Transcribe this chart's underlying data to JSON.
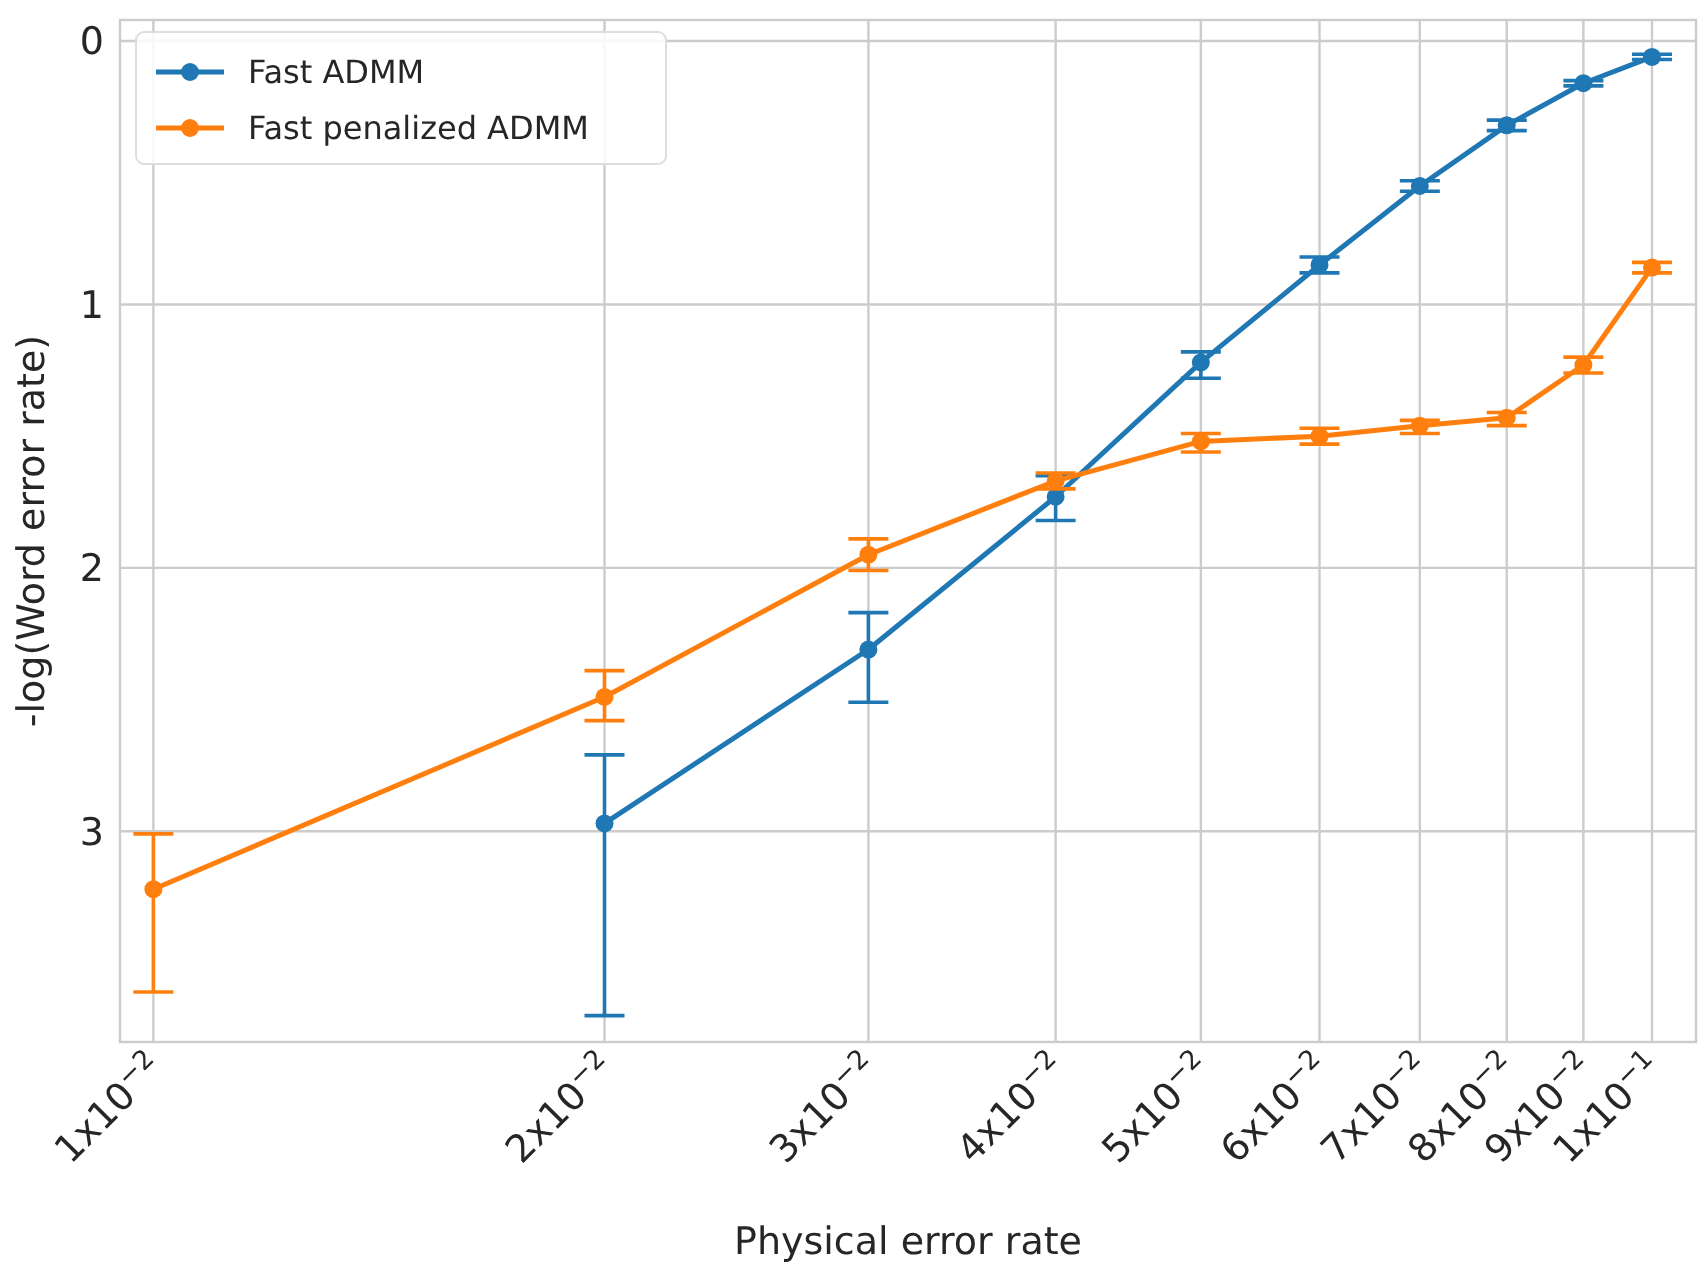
{
  "chart_data": {
    "type": "line",
    "xlabel": "Physical error rate",
    "ylabel": "-log(Word error rate)",
    "log": "x",
    "grid": true,
    "legend": "top left",
    "marker": "circle",
    "line_style": "solid",
    "xlim": [
      0.0095,
      0.107
    ],
    "ylim": [
      3.8,
      -0.08
    ],
    "xticks": [
      {
        "value": 0.01,
        "label": "1x10$^{−2}$"
      },
      {
        "value": 0.02,
        "label": "2x10$^{−2}$"
      },
      {
        "value": 0.03,
        "label": "3x10$^{−2}$"
      },
      {
        "value": 0.04,
        "label": "4x10$^{−2}$"
      },
      {
        "value": 0.05,
        "label": "5x10$^{−2}$"
      },
      {
        "value": 0.06,
        "label": "6x10$^{−2}$"
      },
      {
        "value": 0.07,
        "label": "7x10$^{−2}$"
      },
      {
        "value": 0.08,
        "label": "8x10$^{−2}$"
      },
      {
        "value": 0.09,
        "label": "9x10$^{−2}$"
      },
      {
        "value": 0.1,
        "label": "1x10$^{−1}$"
      }
    ],
    "yticks": [
      0,
      1,
      2,
      3
    ],
    "series": [
      {
        "name": "Fast ADMM",
        "color": "#1f77b4",
        "x": [
          0.02,
          0.03,
          0.04,
          0.05,
          0.06,
          0.07,
          0.08,
          0.09,
          0.1
        ],
        "values": [
          2.97,
          2.31,
          1.73,
          1.22,
          0.85,
          0.55,
          0.32,
          0.16,
          0.06
        ],
        "errors": [
          [
            2.71,
            3.7
          ],
          [
            2.17,
            2.51
          ],
          [
            1.65,
            1.82
          ],
          [
            1.18,
            1.28
          ],
          [
            0.82,
            0.88
          ],
          [
            0.53,
            0.57
          ],
          [
            0.3,
            0.34
          ],
          [
            0.15,
            0.17
          ],
          [
            0.05,
            0.07
          ]
        ]
      },
      {
        "name": "Fast penalized ADMM",
        "color": "#ff7f0e",
        "x": [
          0.01,
          0.02,
          0.03,
          0.04,
          0.05,
          0.06,
          0.07,
          0.08,
          0.09,
          0.1
        ],
        "values": [
          3.22,
          2.49,
          1.95,
          1.67,
          1.52,
          1.5,
          1.46,
          1.43,
          1.23,
          0.86
        ],
        "errors": [
          [
            3.01,
            3.61
          ],
          [
            2.39,
            2.58
          ],
          [
            1.89,
            2.01
          ],
          [
            1.64,
            1.7
          ],
          [
            1.49,
            1.56
          ],
          [
            1.47,
            1.53
          ],
          [
            1.44,
            1.49
          ],
          [
            1.41,
            1.46
          ],
          [
            1.2,
            1.26
          ],
          [
            0.84,
            0.88
          ]
        ]
      }
    ]
  }
}
